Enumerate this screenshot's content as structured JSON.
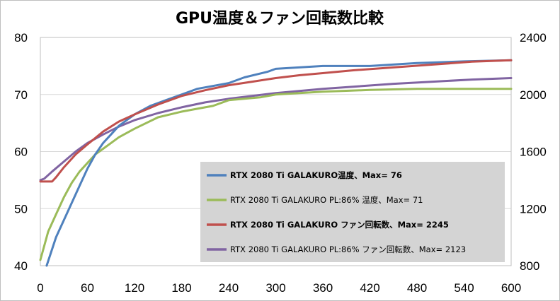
{
  "chart_data": {
    "type": "line",
    "title": "GPU温度＆ファン回転数比較",
    "xlabel": "",
    "ylabel": "",
    "y2label": "",
    "xlim": [
      0,
      600
    ],
    "ylim": [
      40,
      80
    ],
    "y2lim": [
      800,
      2400
    ],
    "x_ticks": [
      "0",
      "60",
      "120",
      "180",
      "240",
      "300",
      "360",
      "420",
      "480",
      "540",
      "600"
    ],
    "y_ticks": [
      "40",
      "50",
      "60",
      "70",
      "80"
    ],
    "y2_ticks": [
      "800",
      "1200",
      "1600",
      "2000",
      "2400"
    ],
    "grid": "horizontal",
    "legend_position": "center-right",
    "series": [
      {
        "name": "RTX 2080 Ti GALAKURO温度、Max= 76",
        "axis": "left",
        "color": "#4f81bd",
        "bold": true,
        "x": [
          8,
          20,
          30,
          40,
          50,
          60,
          70,
          80,
          90,
          100,
          110,
          120,
          140,
          160,
          180,
          200,
          240,
          260,
          290,
          300,
          360,
          420,
          480,
          540,
          600
        ],
        "y": [
          40,
          45,
          48,
          51,
          54,
          57,
          59.5,
          61.5,
          63,
          64.5,
          65.5,
          66.5,
          68,
          69,
          70,
          71,
          72,
          73,
          74,
          74.5,
          75,
          75,
          75.5,
          75.8,
          76
        ]
      },
      {
        "name": "RTX 2080 Ti GALAKURO PL:86% 温度、Max= 71",
        "axis": "left",
        "color": "#9bbb59",
        "bold": false,
        "x": [
          0,
          10,
          20,
          30,
          40,
          50,
          60,
          70,
          80,
          90,
          100,
          120,
          150,
          180,
          200,
          220,
          240,
          280,
          300,
          360,
          420,
          480,
          540,
          600
        ],
        "y": [
          41,
          46,
          49,
          52,
          54.5,
          56.5,
          58,
          59.5,
          60.5,
          61.5,
          62.5,
          64,
          66,
          67,
          67.5,
          68,
          69,
          69.5,
          70,
          70.5,
          70.8,
          71,
          71,
          71
        ]
      },
      {
        "name": "RTX 2080 Ti GALAKURO ファン回転数、Max= 2245",
        "axis": "right",
        "color": "#c0504d",
        "bold": true,
        "x": [
          0,
          15,
          20,
          30,
          45,
          60,
          80,
          100,
          120,
          150,
          180,
          210,
          240,
          270,
          300,
          330,
          360,
          400,
          450,
          500,
          550,
          600
        ],
        "y": [
          1390,
          1390,
          1420,
          1490,
          1580,
          1650,
          1740,
          1810,
          1860,
          1930,
          1990,
          2030,
          2065,
          2090,
          2115,
          2135,
          2150,
          2170,
          2190,
          2210,
          2230,
          2240
        ]
      },
      {
        "name": "RTX 2080 Ti GALAKURO PL:86% ファン回転数、Max= 2123",
        "axis": "right",
        "color": "#8064a2",
        "bold": false,
        "x": [
          0,
          5,
          15,
          30,
          45,
          60,
          80,
          100,
          120,
          150,
          180,
          210,
          240,
          270,
          300,
          330,
          360,
          400,
          450,
          500,
          550,
          600
        ],
        "y": [
          1400,
          1410,
          1460,
          1530,
          1600,
          1660,
          1720,
          1775,
          1820,
          1870,
          1910,
          1945,
          1970,
          1990,
          2010,
          2025,
          2040,
          2055,
          2075,
          2090,
          2105,
          2115
        ]
      }
    ]
  }
}
